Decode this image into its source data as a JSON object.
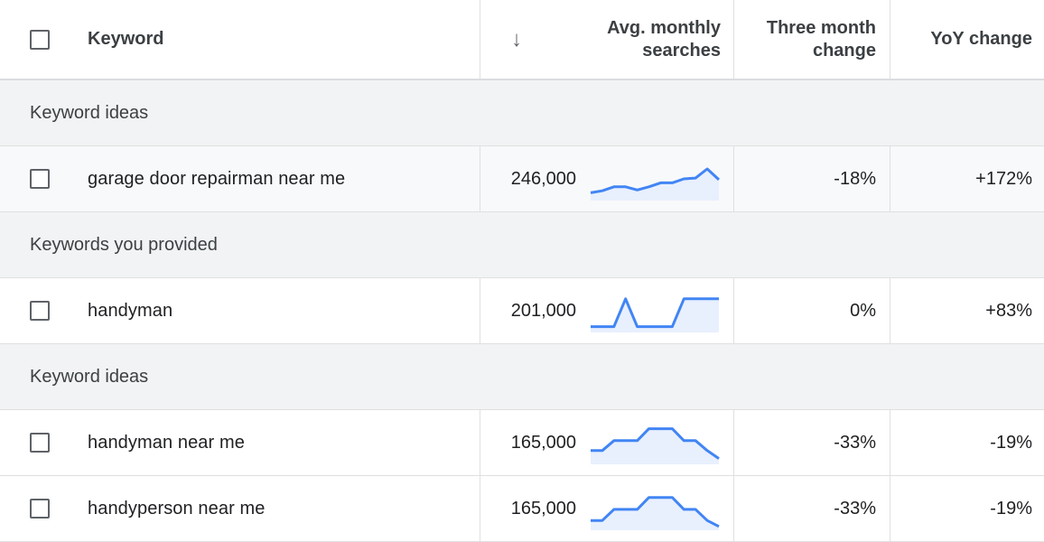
{
  "header": {
    "keyword_label": "Keyword",
    "sort_arrow": "↓",
    "avg_line1": "Avg. monthly",
    "avg_line2": "searches",
    "three_line1": "Three month",
    "three_line2": "change",
    "yoy_label": "YoY change"
  },
  "groups": [
    {
      "label": "Keyword ideas",
      "rows": [
        {
          "keyword": "garage door repairman near me",
          "avg": "246,000",
          "three": "-18%",
          "yoy": "+172%",
          "trend": [
            15,
            20,
            30,
            30,
            22,
            30,
            40,
            40,
            50,
            52,
            75,
            48
          ]
        }
      ]
    },
    {
      "label": "Keywords you provided",
      "rows": [
        {
          "keyword": "handyman",
          "avg": "201,000",
          "three": "0%",
          "yoy": "+83%",
          "trend": [
            10,
            10,
            10,
            80,
            10,
            10,
            10,
            10,
            80,
            80,
            80,
            80
          ]
        }
      ]
    },
    {
      "label": "Keyword ideas",
      "rows": [
        {
          "keyword": "handyman near me",
          "avg": "165,000",
          "three": "-33%",
          "yoy": "-19%",
          "trend": [
            30,
            30,
            55,
            55,
            55,
            85,
            85,
            85,
            55,
            55,
            30,
            10
          ]
        },
        {
          "keyword": "handyperson near me",
          "avg": "165,000",
          "three": "-33%",
          "yoy": "-19%",
          "trend": [
            20,
            20,
            48,
            48,
            48,
            78,
            78,
            78,
            48,
            48,
            20,
            5
          ]
        }
      ]
    }
  ],
  "colors": {
    "spark_line": "#4285f4",
    "spark_fill": "#e8f0fe",
    "group_bg": "#f1f3f4"
  }
}
